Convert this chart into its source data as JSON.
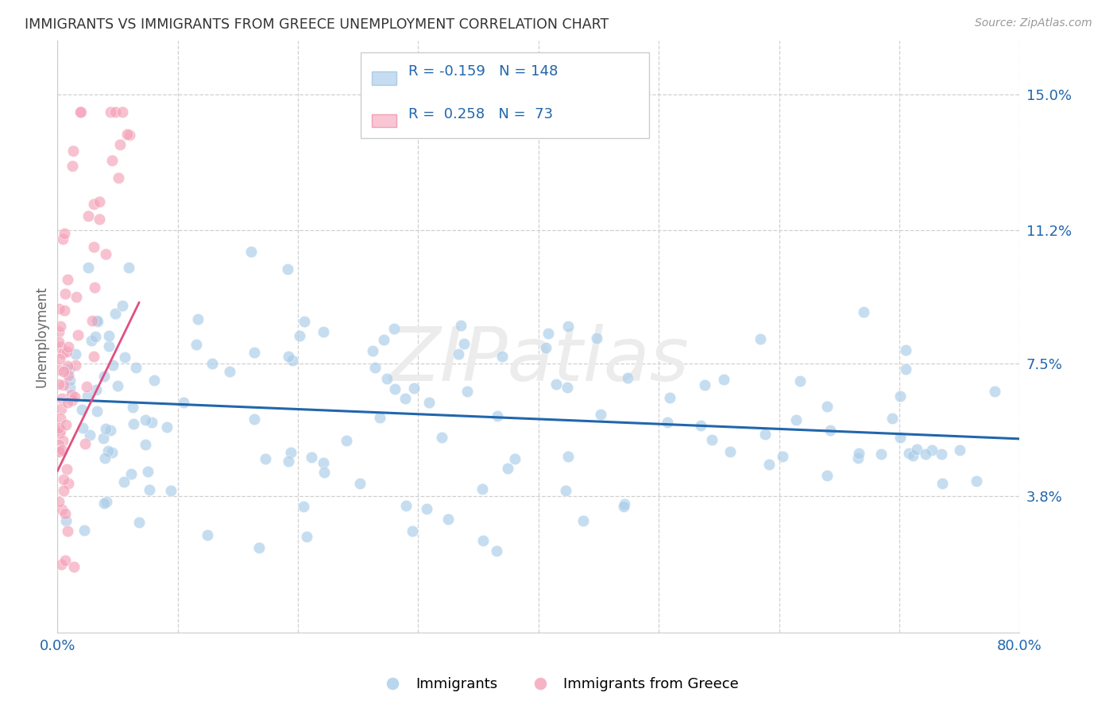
{
  "title": "IMMIGRANTS VS IMMIGRANTS FROM GREECE UNEMPLOYMENT CORRELATION CHART",
  "source_text": "Source: ZipAtlas.com",
  "ylabel": "Unemployment",
  "ytick_labels": [
    "15.0%",
    "11.2%",
    "7.5%",
    "3.8%"
  ],
  "ytick_values": [
    0.15,
    0.112,
    0.075,
    0.038
  ],
  "xlim": [
    0.0,
    0.8
  ],
  "ylim": [
    0.0,
    0.165
  ],
  "blue_R": -0.159,
  "blue_N": 148,
  "pink_R": 0.258,
  "pink_N": 73,
  "blue_color": "#a8cce8",
  "pink_color": "#f4a0b8",
  "trendline_blue_color": "#2166ac",
  "trendline_pink_color": "#e05080",
  "background_color": "#ffffff",
  "grid_color": "#d0d0d0",
  "title_color": "#333333",
  "axis_label_color": "#2166ac",
  "watermark_color": "#e8e8e8",
  "legend_blue_fill": "#c6dcf0",
  "legend_pink_fill": "#f9c6d4",
  "legend_edge": "#cccccc"
}
